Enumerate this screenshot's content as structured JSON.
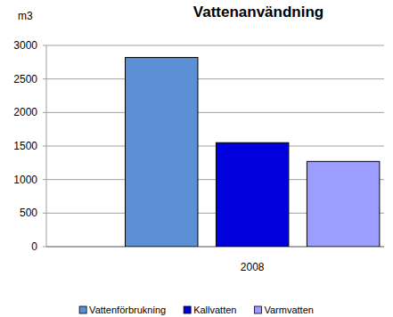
{
  "chart_data": {
    "type": "bar",
    "title": "Vattenanvändning",
    "y_label": "m3",
    "categories": [
      "2008"
    ],
    "series": [
      {
        "name": "Vattenförbrukning",
        "color": "#5b8fd6",
        "values": [
          2820
        ]
      },
      {
        "name": "Kallvatten",
        "color": "#0000dd",
        "values": [
          1550
        ]
      },
      {
        "name": "Varmvatten",
        "color": "#9d9dff",
        "values": [
          1270
        ]
      }
    ],
    "ylim": [
      0,
      3000
    ],
    "yticks": [
      0,
      500,
      1000,
      1500,
      2000,
      2500,
      3000
    ],
    "grid": true,
    "legend": "bottom"
  }
}
